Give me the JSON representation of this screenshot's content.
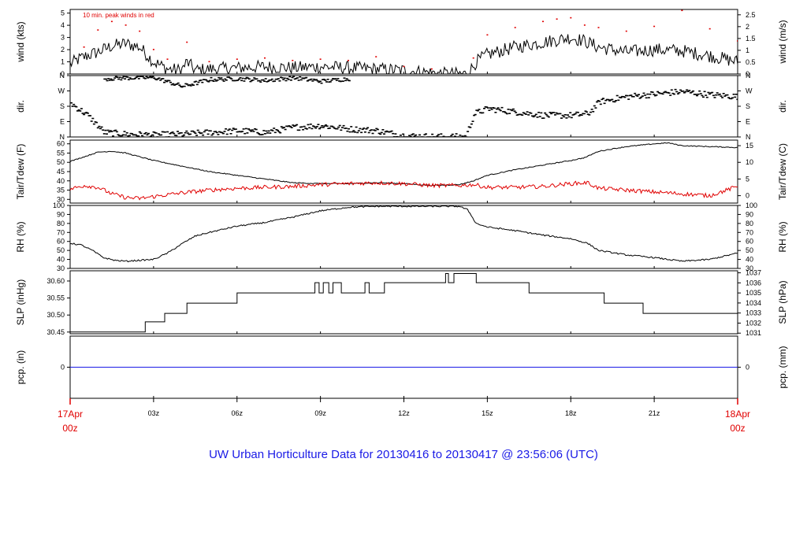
{
  "footer_title": "UW Urban Horticulture Data for 20130416  to  20130417 @ 23:56:06  (UTC)",
  "colors": {
    "primary": "#000000",
    "secondary": "#e00000",
    "precip": "#1a1ae6",
    "footer": "#1a1ae6"
  },
  "time_axis": {
    "start_hour": 0,
    "end_hour": 24,
    "ticks": [
      {
        "hour": 3,
        "label": "03z"
      },
      {
        "hour": 6,
        "label": "06z"
      },
      {
        "hour": 9,
        "label": "09z"
      },
      {
        "hour": 12,
        "label": "12z"
      },
      {
        "hour": 15,
        "label": "15z"
      },
      {
        "hour": 18,
        "label": "18z"
      },
      {
        "hour": 21,
        "label": "21z"
      }
    ],
    "start_label": {
      "line1": "17Apr",
      "line2": "00z"
    },
    "end_label": {
      "line1": "18Apr",
      "line2": "00z"
    }
  },
  "chart_data": [
    {
      "id": "wind",
      "type": "line",
      "ylabel_left": "wind (kts)",
      "ylabel_right": "wind (m/s)",
      "annotation": "10 min. peak winds in red",
      "ylim": [
        0,
        5.3
      ],
      "left_ticks": [
        {
          "v": 0,
          "t": "0"
        },
        {
          "v": 1,
          "t": "1"
        },
        {
          "v": 2,
          "t": "2"
        },
        {
          "v": 3,
          "t": "3"
        },
        {
          "v": 4,
          "t": "4"
        },
        {
          "v": 5,
          "t": "5"
        }
      ],
      "right_ticks": [
        {
          "v": 0,
          "t": "0"
        },
        {
          "v": 0.972,
          "t": "0.5"
        },
        {
          "v": 1.944,
          "t": "1"
        },
        {
          "v": 2.916,
          "t": "1.5"
        },
        {
          "v": 3.888,
          "t": "2"
        },
        {
          "v": 4.86,
          "t": "2.5"
        }
      ],
      "series": [
        {
          "style": "line",
          "color": "#000000",
          "noise": 0.55,
          "x": [
            0,
            0.3,
            0.6,
            1,
            1.5,
            2,
            2.5,
            3,
            3.5,
            4,
            4.2,
            4.5,
            5,
            6,
            7,
            8,
            9,
            10,
            11,
            12,
            13,
            13.5,
            14,
            14.3,
            14.6,
            15,
            16,
            17,
            18,
            18.5,
            19,
            20,
            21,
            22,
            23,
            24
          ],
          "y": [
            0.8,
            1.2,
            1.5,
            1.8,
            2.3,
            2.5,
            2.2,
            1.0,
            0.4,
            0.3,
            1.0,
            0.3,
            0.4,
            0.5,
            0.6,
            0.5,
            0.6,
            0.5,
            0.4,
            0.3,
            0.1,
            0.0,
            0.0,
            0.0,
            1.0,
            1.6,
            2.2,
            2.6,
            3.0,
            2.7,
            2.2,
            1.8,
            2.0,
            1.9,
            1.5,
            1.0
          ]
        },
        {
          "style": "dots",
          "color": "#e00000",
          "x": [
            0.5,
            1,
            1.5,
            2,
            2.5,
            3,
            3.5,
            4.2,
            5,
            6,
            7,
            8,
            9,
            10,
            11,
            12,
            13,
            14.5,
            15,
            16,
            17,
            17.5,
            18,
            18.5,
            19,
            20,
            21,
            22,
            23,
            24
          ],
          "y": [
            2.2,
            3.6,
            4.3,
            4.0,
            3.5,
            2.0,
            1.2,
            2.6,
            1.0,
            1.2,
            1.3,
            1.1,
            1.2,
            1.1,
            1.4,
            0.6,
            0.4,
            1.3,
            3.2,
            3.8,
            4.3,
            4.5,
            4.6,
            4.0,
            3.8,
            3.5,
            3.9,
            5.2,
            3.7,
            2.7
          ]
        }
      ]
    },
    {
      "id": "dir",
      "type": "scatter",
      "ylabel_left": "dir.",
      "ylabel_right": "dir.",
      "ylim": [
        0,
        360
      ],
      "left_ticks": [
        {
          "v": 0,
          "t": "N"
        },
        {
          "v": 90,
          "t": "E"
        },
        {
          "v": 180,
          "t": "S"
        },
        {
          "v": 270,
          "t": "W"
        },
        {
          "v": 360,
          "t": "N"
        }
      ],
      "right_ticks": [
        {
          "v": 0,
          "t": "N"
        },
        {
          "v": 90,
          "t": "E"
        },
        {
          "v": 180,
          "t": "S"
        },
        {
          "v": 270,
          "t": "W"
        },
        {
          "v": 360,
          "t": "N"
        }
      ],
      "series": [
        {
          "style": "scatter",
          "color": "#000000",
          "noise": 18,
          "x": [
            0,
            0.6,
            1.2,
            2,
            3,
            4,
            5,
            6,
            7,
            8,
            9,
            10,
            11,
            12,
            13,
            14,
            14.2,
            14.5,
            15,
            16,
            17,
            18,
            18.6,
            19,
            20,
            21,
            22,
            23,
            24
          ],
          "y": [
            200,
            130,
            30,
            20,
            15,
            20,
            30,
            40,
            30,
            60,
            70,
            50,
            40,
            10,
            5,
            5,
            5,
            140,
            170,
            150,
            130,
            130,
            140,
            210,
            240,
            255,
            270,
            250,
            240
          ]
        },
        {
          "style": "scatter",
          "color": "#000000",
          "noise": 12,
          "x": [
            1.2,
            2,
            3,
            4,
            5,
            6,
            7,
            8,
            9,
            10
          ],
          "y": [
            345,
            350,
            352,
            300,
            340,
            345,
            335,
            350,
            330,
            345
          ]
        }
      ]
    },
    {
      "id": "temp",
      "type": "line",
      "ylabel_left": "Tair/Tdew (F)",
      "ylabel_right": "Tair/Tdew (C)",
      "ylim": [
        28,
        62
      ],
      "left_ticks": [
        {
          "v": 30,
          "t": "30"
        },
        {
          "v": 35,
          "t": "35"
        },
        {
          "v": 40,
          "t": "40"
        },
        {
          "v": 45,
          "t": "45"
        },
        {
          "v": 50,
          "t": "50"
        },
        {
          "v": 55,
          "t": "55"
        },
        {
          "v": 60,
          "t": "60"
        }
      ],
      "right_ticks": [
        {
          "v": 32,
          "t": "0"
        },
        {
          "v": 41,
          "t": "5"
        },
        {
          "v": 50,
          "t": "10"
        },
        {
          "v": 59,
          "t": "15"
        }
      ],
      "series": [
        {
          "style": "line",
          "color": "#000000",
          "noise": 0.25,
          "x": [
            0,
            0.5,
            1,
            1.5,
            2,
            3,
            4,
            5,
            6,
            7,
            8,
            9,
            10,
            11,
            12,
            13,
            14,
            14.5,
            15,
            16,
            17,
            18,
            18.5,
            19,
            20,
            21,
            21.5,
            22,
            23,
            24
          ],
          "y": [
            50.5,
            53,
            55.5,
            56,
            55,
            51,
            48,
            45,
            43,
            41,
            39,
            38.5,
            38.5,
            39,
            38.5,
            37.5,
            38,
            40,
            43,
            46,
            48.5,
            51,
            52.5,
            56,
            58.5,
            60,
            60.5,
            59,
            58.5,
            58
          ]
        },
        {
          "style": "line",
          "color": "#e00000",
          "noise": 1.1,
          "x": [
            0,
            0.5,
            1,
            1.5,
            2,
            2.5,
            3,
            4,
            5,
            6,
            7,
            8,
            9,
            10,
            11,
            12,
            13,
            14,
            14.5,
            15,
            16,
            17,
            18,
            18.6,
            19,
            20,
            21,
            22,
            23,
            24
          ],
          "y": [
            35.5,
            37.5,
            36.5,
            33,
            31,
            30.5,
            31.5,
            33.5,
            35,
            36,
            36.5,
            37,
            38,
            38.5,
            39,
            38.5,
            37.5,
            37.5,
            38,
            36.5,
            36.5,
            37,
            38.5,
            39,
            36,
            35,
            34,
            33,
            32,
            37
          ]
        }
      ]
    },
    {
      "id": "rh",
      "type": "line",
      "ylabel_left": "RH (%)",
      "ylabel_right": "RH (%)",
      "ylim": [
        30,
        100
      ],
      "left_ticks": [
        {
          "v": 30,
          "t": "30"
        },
        {
          "v": 40,
          "t": "40"
        },
        {
          "v": 50,
          "t": "50"
        },
        {
          "v": 60,
          "t": "60"
        },
        {
          "v": 70,
          "t": "70"
        },
        {
          "v": 80,
          "t": "80"
        },
        {
          "v": 90,
          "t": "90"
        },
        {
          "v": 100,
          "t": "100"
        }
      ],
      "right_ticks": [
        {
          "v": 30,
          "t": "30"
        },
        {
          "v": 40,
          "t": "40"
        },
        {
          "v": 50,
          "t": "50"
        },
        {
          "v": 60,
          "t": "60"
        },
        {
          "v": 70,
          "t": "70"
        },
        {
          "v": 80,
          "t": "80"
        },
        {
          "v": 90,
          "t": "90"
        },
        {
          "v": 100,
          "t": "100"
        }
      ],
      "series": [
        {
          "style": "line",
          "color": "#000000",
          "noise": 0.8,
          "x": [
            0,
            0.4,
            0.8,
            1.2,
            1.6,
            2,
            3,
            3.5,
            4,
            4.5,
            5,
            6,
            7,
            8,
            9,
            10,
            11,
            12,
            13,
            14,
            14.3,
            14.6,
            15,
            16,
            17,
            18,
            18.6,
            19,
            20,
            21,
            22,
            23,
            24
          ],
          "y": [
            58,
            56,
            50,
            42,
            39,
            38,
            40,
            47,
            57,
            66,
            70,
            77,
            81,
            87,
            94,
            98,
            99,
            99,
            99,
            99,
            95,
            80,
            76,
            72,
            67,
            63,
            58,
            50,
            45,
            42,
            38,
            40,
            47
          ]
        }
      ]
    },
    {
      "id": "slp",
      "type": "line",
      "ylabel_left": "SLP (inHg)",
      "ylabel_right": "SLP (hPa)",
      "ylim": [
        30.445,
        30.63
      ],
      "left_ticks": [
        {
          "v": 30.45,
          "t": "30.45"
        },
        {
          "v": 30.5,
          "t": "30.50"
        },
        {
          "v": 30.55,
          "t": "30.55"
        },
        {
          "v": 30.6,
          "t": "30.60"
        }
      ],
      "right_ticks": [
        {
          "v": 30.4468,
          "t": "1031"
        },
        {
          "v": 30.4763,
          "t": "1032"
        },
        {
          "v": 30.5059,
          "t": "1033"
        },
        {
          "v": 30.5354,
          "t": "1034"
        },
        {
          "v": 30.5649,
          "t": "1035"
        },
        {
          "v": 30.5945,
          "t": "1036"
        },
        {
          "v": 30.624,
          "t": "1037"
        }
      ],
      "series": [
        {
          "style": "step",
          "color": "#000000",
          "x": [
            0,
            2.7,
            3.4,
            4.2,
            5,
            6,
            8,
            8.8,
            8.95,
            9.1,
            9.3,
            9.45,
            9.75,
            10.6,
            10.75,
            11.3,
            13.3,
            13.5,
            13.6,
            13.8,
            14.6,
            16.5,
            19.2,
            20.6,
            24
          ],
          "y": [
            30.45,
            30.48,
            30.505,
            30.535,
            30.535,
            30.565,
            30.565,
            30.595,
            30.565,
            30.595,
            30.565,
            30.595,
            30.565,
            30.595,
            30.565,
            30.595,
            30.595,
            30.622,
            30.595,
            30.622,
            30.595,
            30.565,
            30.535,
            30.505,
            30.505
          ]
        }
      ]
    },
    {
      "id": "precip",
      "type": "line",
      "ylabel_left": "pcp. (in)",
      "ylabel_right": "pcp. (mm)",
      "ylim": [
        -1,
        1
      ],
      "left_ticks": [
        {
          "v": 0,
          "t": "0"
        }
      ],
      "right_ticks": [
        {
          "v": 0,
          "t": "0"
        }
      ],
      "series": [
        {
          "style": "line",
          "color": "#1a1ae6",
          "x": [
            0,
            24
          ],
          "y": [
            0,
            0
          ]
        }
      ]
    }
  ]
}
